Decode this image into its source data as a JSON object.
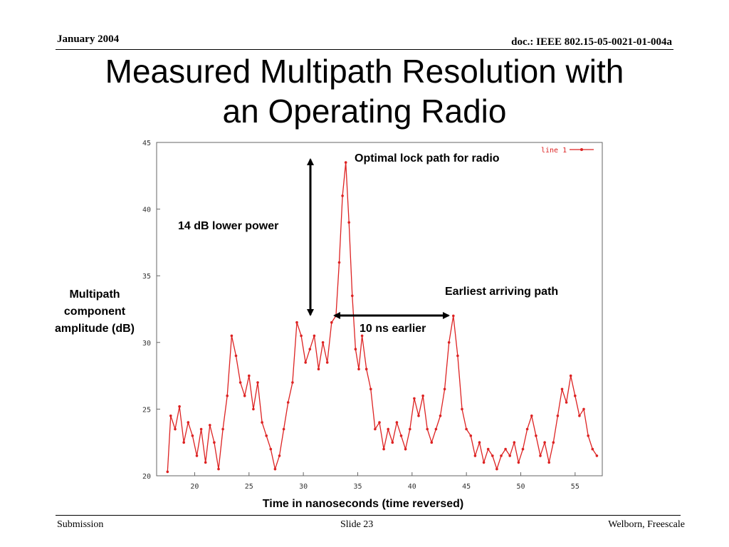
{
  "header": {
    "date": "January 2004",
    "doc_id": "doc.: IEEE 802.15-05-0021-01-004a"
  },
  "slide": {
    "title_line1": "Measured Multipath Resolution with",
    "title_line2": "an Operating Radio"
  },
  "annotations": {
    "optimal": "Optimal lock path for radio",
    "power": "14 dB lower power",
    "earliest": "Earliest arriving path",
    "earlier": "10 ns earlier"
  },
  "footer": {
    "left": "Submission",
    "center": "Slide 23",
    "right": "Welborn, Freescale"
  },
  "colors": {
    "series": "#dd2222",
    "grid": "#bbbbbb",
    "axis": "#666666"
  },
  "chart_data": {
    "type": "line",
    "title": "",
    "xlabel": "Time in nanoseconds (time reversed)",
    "ylabel": "Multipath component amplitude (dB)",
    "xlim": [
      16.5,
      57.5
    ],
    "ylim": [
      20,
      45
    ],
    "xticks": [
      20,
      25,
      30,
      35,
      40,
      45,
      50,
      55
    ],
    "yticks": [
      20,
      25,
      30,
      35,
      40,
      45
    ],
    "grid": true,
    "legend_position": "top-right",
    "series": [
      {
        "name": "line 1",
        "points": [
          [
            17.5,
            20.3
          ],
          [
            17.8,
            24.5
          ],
          [
            18.2,
            23.5
          ],
          [
            18.6,
            25.2
          ],
          [
            19.0,
            22.5
          ],
          [
            19.4,
            24.0
          ],
          [
            19.8,
            23.0
          ],
          [
            20.2,
            21.5
          ],
          [
            20.6,
            23.5
          ],
          [
            21.0,
            21.0
          ],
          [
            21.4,
            23.8
          ],
          [
            21.8,
            22.5
          ],
          [
            22.2,
            20.5
          ],
          [
            22.6,
            23.5
          ],
          [
            23.0,
            26.0
          ],
          [
            23.4,
            30.5
          ],
          [
            23.8,
            29.0
          ],
          [
            24.2,
            27.0
          ],
          [
            24.6,
            26.0
          ],
          [
            25.0,
            27.5
          ],
          [
            25.4,
            25.0
          ],
          [
            25.8,
            27.0
          ],
          [
            26.2,
            24.0
          ],
          [
            26.6,
            23.0
          ],
          [
            27.0,
            22.0
          ],
          [
            27.4,
            20.5
          ],
          [
            27.8,
            21.5
          ],
          [
            28.2,
            23.5
          ],
          [
            28.6,
            25.5
          ],
          [
            29.0,
            27.0
          ],
          [
            29.4,
            31.5
          ],
          [
            29.8,
            30.5
          ],
          [
            30.2,
            28.5
          ],
          [
            30.6,
            29.5
          ],
          [
            31.0,
            30.5
          ],
          [
            31.4,
            28.0
          ],
          [
            31.8,
            30.0
          ],
          [
            32.2,
            28.5
          ],
          [
            32.6,
            31.5
          ],
          [
            33.0,
            32.0
          ],
          [
            33.3,
            36.0
          ],
          [
            33.6,
            41.0
          ],
          [
            33.9,
            43.5
          ],
          [
            34.2,
            39.0
          ],
          [
            34.5,
            33.5
          ],
          [
            34.8,
            29.5
          ],
          [
            35.1,
            28.0
          ],
          [
            35.4,
            30.5
          ],
          [
            35.8,
            28.0
          ],
          [
            36.2,
            26.5
          ],
          [
            36.6,
            23.5
          ],
          [
            37.0,
            24.0
          ],
          [
            37.4,
            22.0
          ],
          [
            37.8,
            23.5
          ],
          [
            38.2,
            22.5
          ],
          [
            38.6,
            24.0
          ],
          [
            39.0,
            23.0
          ],
          [
            39.4,
            22.0
          ],
          [
            39.8,
            23.5
          ],
          [
            40.2,
            25.8
          ],
          [
            40.6,
            24.5
          ],
          [
            41.0,
            26.0
          ],
          [
            41.4,
            23.5
          ],
          [
            41.8,
            22.5
          ],
          [
            42.2,
            23.5
          ],
          [
            42.6,
            24.5
          ],
          [
            43.0,
            26.5
          ],
          [
            43.4,
            30.0
          ],
          [
            43.8,
            32.0
          ],
          [
            44.2,
            29.0
          ],
          [
            44.6,
            25.0
          ],
          [
            45.0,
            23.5
          ],
          [
            45.4,
            23.0
          ],
          [
            45.8,
            21.5
          ],
          [
            46.2,
            22.5
          ],
          [
            46.6,
            21.0
          ],
          [
            47.0,
            22.0
          ],
          [
            47.4,
            21.5
          ],
          [
            47.8,
            20.5
          ],
          [
            48.2,
            21.5
          ],
          [
            48.6,
            22.0
          ],
          [
            49.0,
            21.5
          ],
          [
            49.4,
            22.5
          ],
          [
            49.8,
            21.0
          ],
          [
            50.2,
            22.0
          ],
          [
            50.6,
            23.5
          ],
          [
            51.0,
            24.5
          ],
          [
            51.4,
            23.0
          ],
          [
            51.8,
            21.5
          ],
          [
            52.2,
            22.5
          ],
          [
            52.6,
            21.0
          ],
          [
            53.0,
            22.5
          ],
          [
            53.4,
            24.5
          ],
          [
            53.8,
            26.5
          ],
          [
            54.2,
            25.5
          ],
          [
            54.6,
            27.5
          ],
          [
            55.0,
            26.0
          ],
          [
            55.4,
            24.5
          ],
          [
            55.8,
            25.0
          ],
          [
            56.2,
            23.0
          ],
          [
            56.6,
            22.0
          ],
          [
            57.0,
            21.5
          ]
        ]
      }
    ]
  }
}
